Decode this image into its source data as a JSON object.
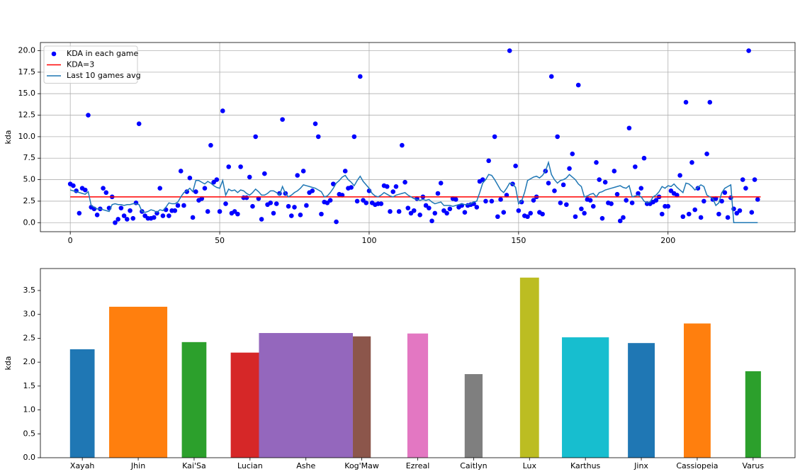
{
  "chart_data": [
    {
      "type": "scatter",
      "ylabel": "kda",
      "xlim": [
        -10,
        242.5
      ],
      "ylim": [
        -1.05,
        20.95
      ],
      "xticks": [
        0,
        50,
        100,
        150,
        200
      ],
      "yticks": [
        {
          "value": 0,
          "label": "0.0"
        },
        {
          "value": 2.5,
          "label": "2.5"
        },
        {
          "value": 5,
          "label": "5.0"
        },
        {
          "value": 7.5,
          "label": "7.5"
        },
        {
          "value": 10,
          "label": "10.0"
        },
        {
          "value": 12.5,
          "label": "12.5"
        },
        {
          "value": 15,
          "label": "15.0"
        },
        {
          "value": 17.5,
          "label": "17.5"
        },
        {
          "value": 20,
          "label": "20.0"
        }
      ],
      "grid": true,
      "legend": "upper left",
      "x": [
        0,
        1,
        2,
        3,
        4,
        5,
        6,
        7,
        8,
        9,
        10,
        11,
        12,
        13,
        14,
        15,
        16,
        17,
        18,
        19,
        20,
        21,
        22,
        23,
        24,
        25,
        26,
        27,
        28,
        29,
        30,
        31,
        32,
        33,
        34,
        35,
        36,
        37,
        38,
        39,
        40,
        41,
        42,
        43,
        44,
        45,
        46,
        47,
        48,
        49,
        50,
        51,
        52,
        53,
        54,
        55,
        56,
        57,
        58,
        59,
        60,
        61,
        62,
        63,
        64,
        65,
        66,
        67,
        68,
        69,
        70,
        71,
        72,
        73,
        74,
        75,
        76,
        77,
        78,
        79,
        80,
        81,
        82,
        83,
        84,
        85,
        86,
        87,
        88,
        89,
        90,
        91,
        92,
        93,
        94,
        95,
        96,
        97,
        98,
        99,
        100,
        101,
        102,
        103,
        104,
        105,
        106,
        107,
        108,
        109,
        110,
        111,
        112,
        113,
        114,
        115,
        116,
        117,
        118,
        119,
        120,
        121,
        122,
        123,
        124,
        125,
        126,
        127,
        128,
        129,
        130,
        131,
        132,
        133,
        134,
        135,
        136,
        137,
        138,
        139,
        140,
        141,
        142,
        143,
        144,
        145,
        146,
        147,
        148,
        149,
        150,
        151,
        152,
        153,
        154,
        155,
        156,
        157,
        158,
        159,
        160,
        161,
        162,
        163,
        164,
        165,
        166,
        167,
        168,
        169,
        170,
        171,
        172,
        173,
        174,
        175,
        176,
        177,
        178,
        179,
        180,
        181,
        182,
        183,
        184,
        185,
        186,
        187,
        188,
        189,
        190,
        191,
        192,
        193,
        194,
        195,
        196,
        197,
        198,
        199,
        200,
        201,
        202,
        203,
        204,
        205,
        206,
        207,
        208,
        209,
        210,
        211,
        212,
        213,
        214,
        215,
        216,
        217,
        218,
        219,
        220,
        221,
        222,
        223,
        224,
        225,
        226,
        227,
        228,
        229,
        230
      ],
      "series": [
        {
          "name": "KDA in each game",
          "type": "scatter",
          "color": "#0000ff",
          "values": [
            4.5,
            4.3,
            3.7,
            1.1,
            4.0,
            3.8,
            12.5,
            1.8,
            1.6,
            0.9,
            1.6,
            4.0,
            3.5,
            1.7,
            3.0,
            0.0,
            0.4,
            1.7,
            0.8,
            0.4,
            1.4,
            0.5,
            2.3,
            11.5,
            1.3,
            0.8,
            0.5,
            0.5,
            0.6,
            1.1,
            4.0,
            0.8,
            1.5,
            0.8,
            1.4,
            1.4,
            2.0,
            6.0,
            2.0,
            3.6,
            5.2,
            0.6,
            3.6,
            2.6,
            2.8,
            4.0,
            1.3,
            9.0,
            4.7,
            5.0,
            1.3,
            13.0,
            2.2,
            6.5,
            1.1,
            1.3,
            1.0,
            6.5,
            2.9,
            2.9,
            5.3,
            1.9,
            10.0,
            2.8,
            0.4,
            5.7,
            2.1,
            2.3,
            1.1,
            2.2,
            3.4,
            12.0,
            3.4,
            1.9,
            0.8,
            1.8,
            5.5,
            0.9,
            6.0,
            2.0,
            3.5,
            3.7,
            11.5,
            10.0,
            1.0,
            2.4,
            2.3,
            2.6,
            4.5,
            0.1,
            3.3,
            3.2,
            6.0,
            4.0,
            4.1,
            10.0,
            2.5,
            17.0,
            2.6,
            2.3,
            3.7,
            2.3,
            2.1,
            2.2,
            2.2,
            4.3,
            4.2,
            1.3,
            3.6,
            4.2,
            1.3,
            9.0,
            4.7,
            1.7,
            1.1,
            1.4,
            2.8,
            0.9,
            3.0,
            2.0,
            1.7,
            0.2,
            1.1,
            3.4,
            4.6,
            1.4,
            1.1,
            1.6,
            2.8,
            2.7,
            1.8,
            2.0,
            1.2,
            2.0,
            2.1,
            2.2,
            1.8,
            4.8,
            5.0,
            2.5,
            7.2,
            2.5,
            10.0,
            0.7,
            2.7,
            1.2,
            3.2,
            20.0,
            4.5,
            6.6,
            1.4,
            2.4,
            0.8,
            0.7,
            1.1,
            2.6,
            3.0,
            1.2,
            1.0,
            6.0,
            4.6,
            17.0,
            3.7,
            10.0,
            2.3,
            4.4,
            2.1,
            6.3,
            8.0,
            0.7,
            16.0,
            1.6,
            1.1,
            2.7,
            2.6,
            1.9,
            7.0,
            5.0,
            0.5,
            4.7,
            2.3,
            2.2,
            6.0,
            3.3,
            0.2,
            0.6,
            2.6,
            11.0,
            2.3,
            6.5,
            3.4,
            4.0,
            7.5,
            2.2,
            2.2,
            2.4,
            2.6,
            3.0,
            1.0,
            1.9,
            1.9,
            3.7,
            3.4,
            3.2,
            5.5,
            0.7,
            14.0,
            1.0,
            7.0,
            1.5,
            4.0,
            0.6,
            2.5,
            8.0,
            14.0,
            2.7,
            2.8,
            1.0,
            2.5,
            3.5,
            0.6,
            2.9,
            1.6,
            1.1,
            1.4,
            5.0,
            4.0,
            20.0,
            1.2,
            5.0,
            2.7
          ]
        },
        {
          "name": "KDA=3",
          "type": "line",
          "color": "#ff0000",
          "x": [
            0,
            231
          ],
          "values": [
            3,
            3
          ]
        },
        {
          "name": "Last 10 games avg",
          "type": "line",
          "color": "#1f77b4",
          "values": [
            3.8,
            3.7,
            3.6,
            3.5,
            3.4,
            3.3,
            3.6,
            2.0,
            1.8,
            1.6,
            1.6,
            1.5,
            1.4,
            1.3,
            2.1,
            2.2,
            2.1,
            2.1,
            2.0,
            2.1,
            2.1,
            2.2,
            2.2,
            2.1,
            1.3,
            1.2,
            1.3,
            1.5,
            1.4,
            1.2,
            1.5,
            1.4,
            1.8,
            2.3,
            2.2,
            2.2,
            2.4,
            3.0,
            3.5,
            3.7,
            4.0,
            3.6,
            4.9,
            4.9,
            4.7,
            4.5,
            4.8,
            4.6,
            4.3,
            4.1,
            4.0,
            4.9,
            3.2,
            3.9,
            3.7,
            3.8,
            3.5,
            3.8,
            3.7,
            3.4,
            3.2,
            3.5,
            3.9,
            3.6,
            3.2,
            3.2,
            3.4,
            3.7,
            3.7,
            3.5,
            3.2,
            4.2,
            3.4,
            3.0,
            3.2,
            3.5,
            3.7,
            4.0,
            4.4,
            4.3,
            4.2,
            4.1,
            4.0,
            3.8,
            3.6,
            3.0,
            3.1,
            3.5,
            4.0,
            4.6,
            4.9,
            5.3,
            5.5,
            5.0,
            4.7,
            4.3,
            4.9,
            5.4,
            4.8,
            4.4,
            4.0,
            3.4,
            3.1,
            3.0,
            3.2,
            3.5,
            3.3,
            3.1,
            3.0,
            3.2,
            3.3,
            3.4,
            3.5,
            3.2,
            3.0,
            2.8,
            2.7,
            2.6,
            2.7,
            2.6,
            2.7,
            2.4,
            2.2,
            2.3,
            2.4,
            2.0,
            2.0,
            2.0,
            1.9,
            2.0,
            2.1,
            2.2,
            2.1,
            2.1,
            2.2,
            2.4,
            2.5,
            3.5,
            4.6,
            5.0,
            5.6,
            5.5,
            5.0,
            4.4,
            3.8,
            3.5,
            4.0,
            4.6,
            4.5,
            4.1,
            2.2,
            2.5,
            3.5,
            4.9,
            5.1,
            5.3,
            5.4,
            5.2,
            5.5,
            6.0,
            7.0,
            5.6,
            5.0,
            4.6,
            4.9,
            5.0,
            5.2,
            5.6,
            5.3,
            5.0,
            4.5,
            4.2,
            3.0,
            3.1,
            3.3,
            3.4,
            3.0,
            3.5,
            3.6,
            3.8,
            3.9,
            4.0,
            4.1,
            4.2,
            4.3,
            4.1,
            4.0,
            4.3,
            3.0,
            3.1,
            3.2,
            3.0,
            2.5,
            2.3,
            2.4,
            3.0,
            3.2,
            3.6,
            4.2,
            4.0,
            4.3,
            4.2,
            4.5,
            4.1,
            3.8,
            3.5,
            4.6,
            4.5,
            4.2,
            3.8,
            4.1,
            4.4,
            4.2,
            3.2,
            3.0,
            2.8,
            2.0,
            2.3,
            3.5,
            4.0,
            4.2,
            4.4,
            0.0,
            0.0,
            0.0,
            0.0,
            0.0,
            0.0,
            0.0,
            0.0,
            0.0
          ]
        }
      ]
    },
    {
      "type": "bar",
      "ylabel": "kda",
      "ylim": [
        0,
        3.96
      ],
      "yticks": [
        {
          "value": 0,
          "label": "0.0"
        },
        {
          "value": 0.5,
          "label": "0.5"
        },
        {
          "value": 1,
          "label": "1.0"
        },
        {
          "value": 1.5,
          "label": "1.5"
        },
        {
          "value": 2,
          "label": "2.0"
        },
        {
          "value": 2.5,
          "label": "2.5"
        },
        {
          "value": 3,
          "label": "3.0"
        },
        {
          "value": 3.5,
          "label": "3.5"
        }
      ],
      "categories": [
        "Xayah",
        "Jhin",
        "Kai'Sa",
        "Lucian",
        "Ashe",
        "Kog'Maw",
        "Ezreal",
        "Caitlyn",
        "Lux",
        "Karthus",
        "Jinx",
        "Cassiopeia",
        "Varus"
      ],
      "values": [
        2.27,
        3.16,
        2.42,
        2.2,
        2.61,
        2.54,
        2.6,
        1.75,
        3.77,
        2.52,
        2.4,
        2.81,
        1.81
      ],
      "widths": [
        0.44,
        1.04,
        0.44,
        0.69,
        1.68,
        0.32,
        0.37,
        0.32,
        0.34,
        0.84,
        0.48,
        0.48,
        0.28
      ],
      "colors": [
        "#1f77b4",
        "#ff7f0e",
        "#2ca02c",
        "#d62728",
        "#9467bd",
        "#8c564b",
        "#e377c2",
        "#7f7f7f",
        "#bcbd22",
        "#17becf",
        "#1f77b4",
        "#ff7f0e",
        "#2ca02c"
      ]
    }
  ]
}
